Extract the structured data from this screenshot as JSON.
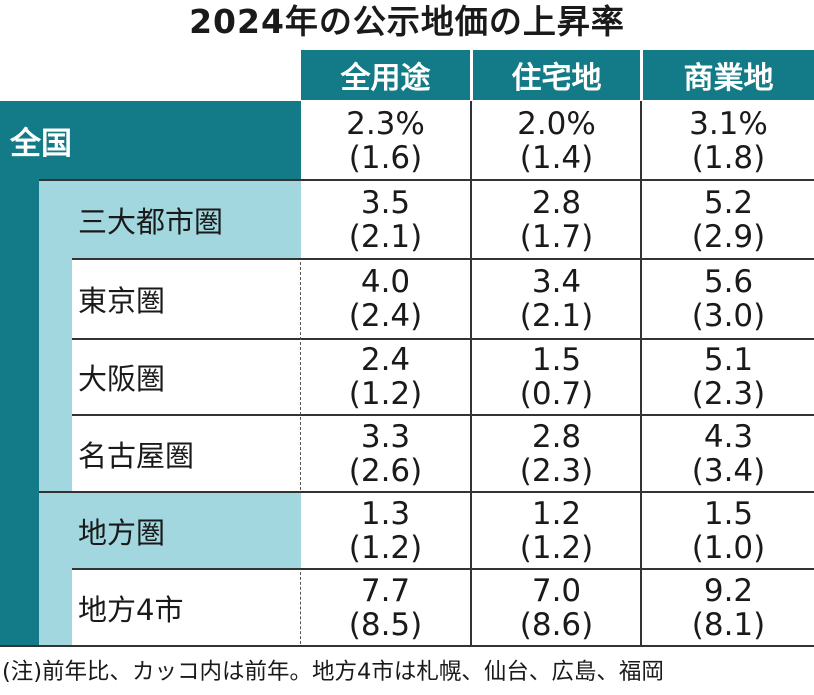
{
  "chart_data": {
    "type": "table",
    "title": "2024年の公示地価の上昇率",
    "columns": [
      "全用途",
      "住宅地",
      "商業地"
    ],
    "rows": [
      {
        "label": "全国",
        "values": [
          "2.3%",
          "2.0%",
          "3.1%"
        ],
        "previous": [
          "(1.6)",
          "(1.4)",
          "(1.8)"
        ]
      },
      {
        "label": "三大都市圏",
        "values": [
          "3.5",
          "2.8",
          "5.2"
        ],
        "previous": [
          "(2.1)",
          "(1.7)",
          "(2.9)"
        ]
      },
      {
        "label": "東京圏",
        "values": [
          "4.0",
          "3.4",
          "5.6"
        ],
        "previous": [
          "(2.4)",
          "(2.1)",
          "(3.0)"
        ]
      },
      {
        "label": "大阪圏",
        "values": [
          "2.4",
          "1.5",
          "5.1"
        ],
        "previous": [
          "(1.2)",
          "(0.7)",
          "(2.3)"
        ]
      },
      {
        "label": "名古屋圏",
        "values": [
          "3.3",
          "2.8",
          "4.3"
        ],
        "previous": [
          "(2.6)",
          "(2.3)",
          "(3.4)"
        ]
      },
      {
        "label": "地方圏",
        "values": [
          "1.3",
          "1.2",
          "1.5"
        ],
        "previous": [
          "(1.2)",
          "(1.2)",
          "(1.0)"
        ]
      },
      {
        "label": "地方4市",
        "values": [
          "7.7",
          "7.0",
          "9.2"
        ],
        "previous": [
          "(8.5)",
          "(8.6)",
          "(8.1)"
        ]
      }
    ],
    "note": "(注)前年比、カッコ内は前年。地方4市は札幌、仙台、広島、福岡",
    "colors": {
      "dark": "#137a87",
      "light": "#a2d7df"
    }
  }
}
